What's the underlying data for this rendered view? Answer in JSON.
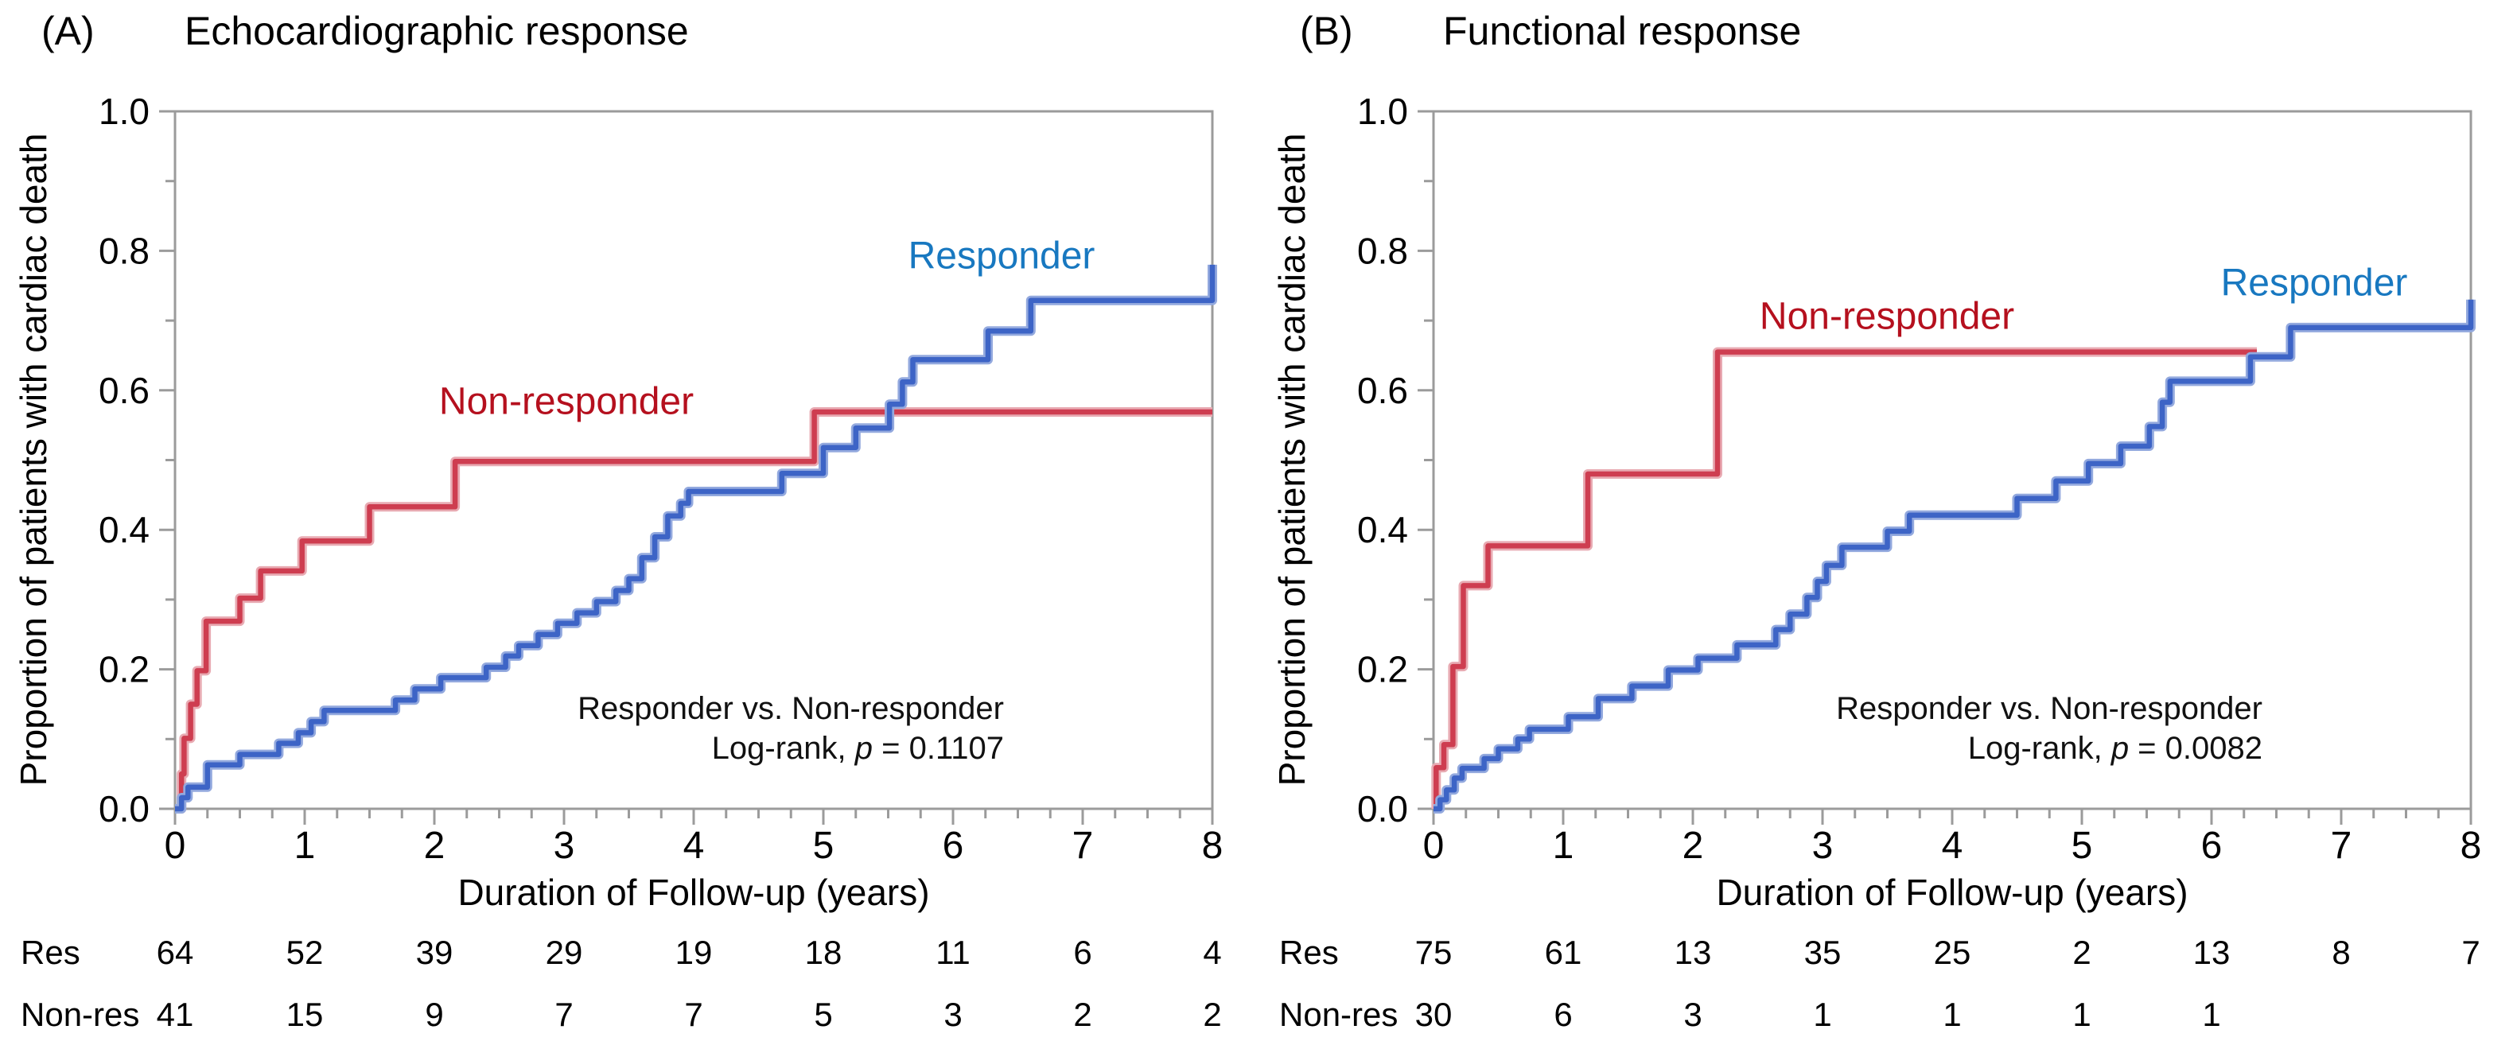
{
  "figure": {
    "panel_a": {
      "tag": "(A)",
      "title": "Echocardiographic response"
    },
    "panel_b": {
      "tag": "(B)",
      "title": "Functional response"
    }
  },
  "axes": {
    "ylabel": "Proportion of patients with cardiac death",
    "xlabel": "Duration of Follow-up (years)",
    "y_ticks": [
      "0.0",
      "0.2",
      "0.4",
      "0.6",
      "0.8",
      "1.0"
    ],
    "x_ticks": [
      "0",
      "1",
      "2",
      "3",
      "4",
      "5",
      "6",
      "7",
      "8"
    ],
    "xlim": [
      0,
      8
    ],
    "ylim": [
      0,
      1
    ]
  },
  "series_labels": {
    "responder": "Responder",
    "non_responder": "Non-responder"
  },
  "stats": {
    "a": {
      "line1": "Responder vs. Non-responder",
      "logrank_prefix": "Log-rank, ",
      "p_symbol": "p",
      "p_value": " = 0.1107"
    },
    "b": {
      "line1": "Responder vs. Non-responder",
      "logrank_prefix": "Log-rank, ",
      "p_symbol": "p",
      "p_value": " = 0.0082"
    }
  },
  "colors": {
    "responder_curve": "#3d64c6",
    "responder_halo": "#93a9de",
    "responder_label": "#1878c0",
    "nonresponder_curve": "#ce3d50",
    "nonresponder_halo": "#e8aab2",
    "nonresponder_label": "#b5101e",
    "frame": "#9b9b9b",
    "text": "#000000"
  },
  "chart_data": [
    {
      "panel": "A",
      "type": "step_line_cumulative_incidence",
      "title": "Echocardiographic response",
      "xlabel": "Duration of Follow-up (years)",
      "ylabel": "Proportion of patients with cardiac death",
      "xlim": [
        0,
        8
      ],
      "ylim": [
        0,
        1
      ],
      "grid": false,
      "annotation": {
        "line1": "Responder vs. Non-responder",
        "line2": "Log-rank, p = 0.1107"
      },
      "series": [
        {
          "id": "nonresponder-a",
          "name": "Non-responder",
          "color_key": "nonresponder",
          "start_value": 0,
          "end_time": 8,
          "steps": [
            [
              0.05,
              0.05
            ],
            [
              0.07,
              0.101
            ],
            [
              0.12,
              0.15
            ],
            [
              0.17,
              0.198
            ],
            [
              0.24,
              0.269
            ],
            [
              0.5,
              0.302
            ],
            [
              0.66,
              0.341
            ],
            [
              0.98,
              0.384
            ],
            [
              1.5,
              0.433
            ],
            [
              2.16,
              0.498
            ],
            [
              4.93,
              0.569
            ]
          ]
        },
        {
          "id": "responder-a",
          "name": "Responder",
          "color_key": "responder",
          "start_value": 0,
          "end_time": 8,
          "steps": [
            [
              0.05,
              0.016
            ],
            [
              0.1,
              0.031
            ],
            [
              0.25,
              0.063
            ],
            [
              0.5,
              0.078
            ],
            [
              0.8,
              0.094
            ],
            [
              0.95,
              0.109
            ],
            [
              1.05,
              0.125
            ],
            [
              1.15,
              0.141
            ],
            [
              1.7,
              0.156
            ],
            [
              1.85,
              0.172
            ],
            [
              2.05,
              0.188
            ],
            [
              2.4,
              0.203
            ],
            [
              2.55,
              0.219
            ],
            [
              2.65,
              0.234
            ],
            [
              2.8,
              0.25
            ],
            [
              2.95,
              0.266
            ],
            [
              3.1,
              0.281
            ],
            [
              3.25,
              0.297
            ],
            [
              3.4,
              0.313
            ],
            [
              3.5,
              0.33
            ],
            [
              3.6,
              0.36
            ],
            [
              3.7,
              0.39
            ],
            [
              3.8,
              0.42
            ],
            [
              3.9,
              0.438
            ],
            [
              3.96,
              0.455
            ],
            [
              4.68,
              0.481
            ],
            [
              5.0,
              0.518
            ],
            [
              5.25,
              0.546
            ],
            [
              5.51,
              0.58
            ],
            [
              5.61,
              0.612
            ],
            [
              5.69,
              0.644
            ],
            [
              6.27,
              0.685
            ],
            [
              6.6,
              0.729
            ],
            [
              8.0,
              0.78
            ]
          ]
        }
      ]
    },
    {
      "panel": "B",
      "type": "step_line_cumulative_incidence",
      "title": "Functional response",
      "xlabel": "Duration of Follow-up (years)",
      "ylabel": "Proportion of patients with cardiac death",
      "xlim": [
        0,
        8
      ],
      "ylim": [
        0,
        1
      ],
      "grid": false,
      "annotation": {
        "line1": "Responder vs. Non-responder",
        "line2": "Log-rank, p = 0.0082"
      },
      "series": [
        {
          "id": "nonresponder-b",
          "name": "Non-responder",
          "color_key": "nonresponder",
          "start_value": 0,
          "end_time": 6.35,
          "steps": [
            [
              0.02,
              0.059
            ],
            [
              0.08,
              0.092
            ],
            [
              0.15,
              0.204
            ],
            [
              0.23,
              0.32
            ],
            [
              0.42,
              0.377
            ],
            [
              1.19,
              0.48
            ],
            [
              2.19,
              0.655
            ]
          ]
        },
        {
          "id": "responder-b",
          "name": "Responder",
          "color_key": "responder",
          "start_value": 0,
          "end_time": 8,
          "steps": [
            [
              0.05,
              0.013
            ],
            [
              0.1,
              0.027
            ],
            [
              0.16,
              0.044
            ],
            [
              0.22,
              0.058
            ],
            [
              0.39,
              0.072
            ],
            [
              0.5,
              0.086
            ],
            [
              0.65,
              0.1
            ],
            [
              0.74,
              0.114
            ],
            [
              1.04,
              0.132
            ],
            [
              1.27,
              0.158
            ],
            [
              1.53,
              0.176
            ],
            [
              1.81,
              0.199
            ],
            [
              2.04,
              0.216
            ],
            [
              2.34,
              0.235
            ],
            [
              2.64,
              0.257
            ],
            [
              2.75,
              0.279
            ],
            [
              2.88,
              0.303
            ],
            [
              2.96,
              0.326
            ],
            [
              3.03,
              0.349
            ],
            [
              3.15,
              0.375
            ],
            [
              3.5,
              0.398
            ],
            [
              3.67,
              0.421
            ],
            [
              4.5,
              0.445
            ],
            [
              4.8,
              0.47
            ],
            [
              5.05,
              0.495
            ],
            [
              5.3,
              0.52
            ],
            [
              5.52,
              0.548
            ],
            [
              5.62,
              0.583
            ],
            [
              5.68,
              0.613
            ],
            [
              6.3,
              0.648
            ],
            [
              6.61,
              0.69
            ],
            [
              8.0,
              0.73
            ]
          ]
        }
      ]
    }
  ],
  "risk_tables": {
    "a": {
      "rows": [
        {
          "label": "Res",
          "values": [
            64,
            52,
            39,
            29,
            19,
            18,
            11,
            6,
            4
          ]
        },
        {
          "label": "Non-res",
          "values": [
            41,
            15,
            9,
            7,
            7,
            5,
            3,
            2,
            2
          ]
        }
      ]
    },
    "b": {
      "rows": [
        {
          "label": "Res",
          "values": [
            75,
            61,
            13,
            35,
            25,
            2,
            13,
            8,
            7
          ]
        },
        {
          "label": "Non-res",
          "values": [
            30,
            6,
            3,
            1,
            1,
            1,
            1
          ]
        }
      ]
    }
  }
}
